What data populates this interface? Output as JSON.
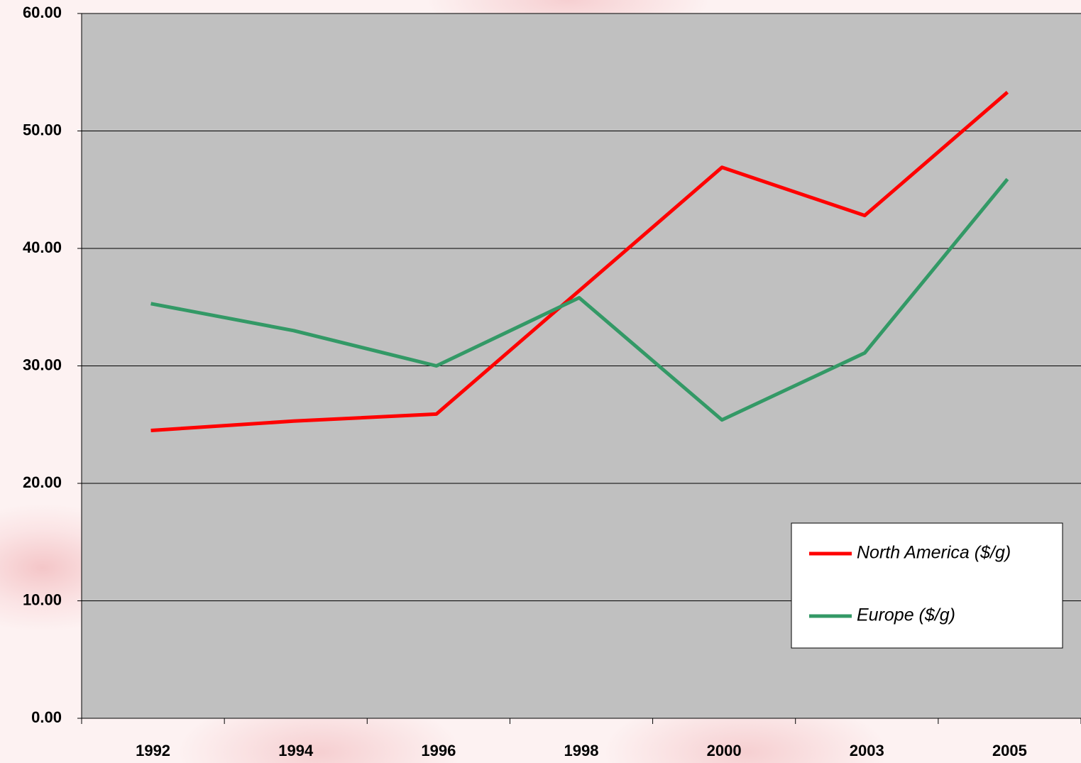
{
  "chart_data": {
    "type": "line",
    "categories": [
      "1992",
      "1994",
      "1996",
      "1998",
      "2000",
      "2003",
      "2005"
    ],
    "series": [
      {
        "name": "North America ($/g)",
        "color": "#ff0000",
        "values": [
          24.5,
          25.3,
          25.9,
          36.4,
          46.9,
          42.8,
          53.3
        ]
      },
      {
        "name": "Europe ($/g)",
        "color": "#339966",
        "values": [
          35.3,
          33.0,
          30.0,
          35.8,
          25.4,
          31.1,
          45.9
        ]
      }
    ],
    "ylim": [
      0,
      60
    ],
    "yticks": [
      {
        "value": 0,
        "label": "0.00"
      },
      {
        "value": 10,
        "label": "10.00"
      },
      {
        "value": 20,
        "label": "20.00"
      },
      {
        "value": 30,
        "label": "30.00"
      },
      {
        "value": 40,
        "label": "40.00"
      },
      {
        "value": 50,
        "label": "50.00"
      },
      {
        "value": 60,
        "label": "60.00"
      }
    ],
    "grid": true,
    "legend": "lower right"
  }
}
